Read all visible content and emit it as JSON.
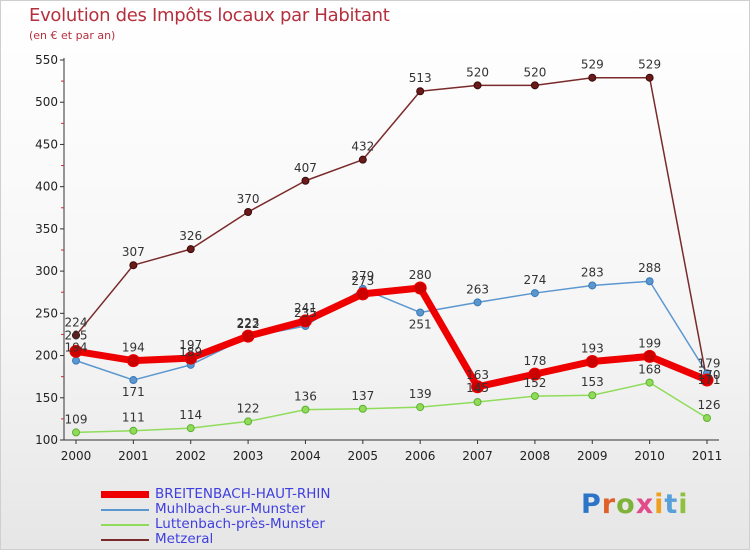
{
  "title": "Evolution des Impôts locaux par Habitant",
  "subtitle": "(en € et par an)",
  "logo_text": "Proxiti",
  "chart_data": {
    "type": "line",
    "x": [
      "2000",
      "2001",
      "2002",
      "2003",
      "2004",
      "2005",
      "2006",
      "2007",
      "2008",
      "2009",
      "2010",
      "2011"
    ],
    "ylim": [
      100,
      550
    ],
    "yticks": [
      100,
      150,
      200,
      250,
      300,
      350,
      400,
      450,
      500,
      550
    ],
    "grid": false,
    "legend_position": "bottom-left",
    "series": [
      {
        "name": "BREITENBACH-HAUT-RHIN",
        "color": "#ee0000",
        "values": [
          205,
          194,
          197,
          223,
          241,
          273,
          280,
          163,
          178,
          193,
          199,
          171
        ]
      },
      {
        "name": "Muhlbach-sur-Munster",
        "color": "#5b97cf",
        "values": [
          194,
          171,
          189,
          222,
          235,
          279,
          251,
          263,
          274,
          283,
          288,
          179
        ]
      },
      {
        "name": "Luttenbach-près-Munster",
        "color": "#8fdc5a",
        "values": [
          109,
          111,
          114,
          122,
          136,
          137,
          139,
          145,
          152,
          153,
          168,
          126
        ]
      },
      {
        "name": "Metzeral",
        "color": "#7a2a2a",
        "values": [
          224,
          307,
          326,
          370,
          407,
          432,
          513,
          520,
          520,
          529,
          529,
          170
        ]
      }
    ]
  }
}
